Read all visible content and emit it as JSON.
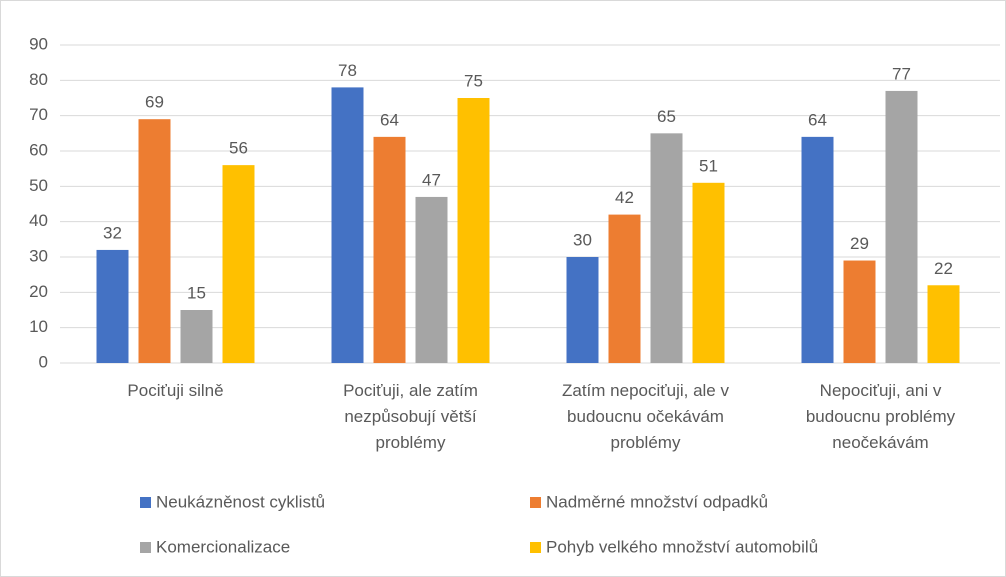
{
  "chart_data": {
    "type": "bar",
    "categories": [
      "Pociťuji silně",
      "Pociťuji, ale zatím nezpůsobují větší problémy",
      "Zatím nepociťuji, ale v budoucnu očekávám problémy",
      "Nepociťuji, ani v budoucnu problémy neočekávám"
    ],
    "series": [
      {
        "name": "Neukázněnost cyklistů",
        "color": "#4472c4",
        "values": [
          32,
          78,
          30,
          64
        ]
      },
      {
        "name": "Nadměrné množství odpadků",
        "color": "#ed7d31",
        "values": [
          69,
          64,
          42,
          29
        ]
      },
      {
        "name": "Komercionalizace",
        "color": "#a5a5a5",
        "values": [
          15,
          47,
          65,
          77
        ]
      },
      {
        "name": "Pohyb velkého množství automobilů",
        "color": "#ffc000",
        "values": [
          56,
          75,
          51,
          22
        ]
      }
    ],
    "ylim": [
      0,
      90
    ],
    "yticks": [
      0,
      10,
      20,
      30,
      40,
      50,
      60,
      70,
      80,
      90
    ],
    "grid": true
  }
}
